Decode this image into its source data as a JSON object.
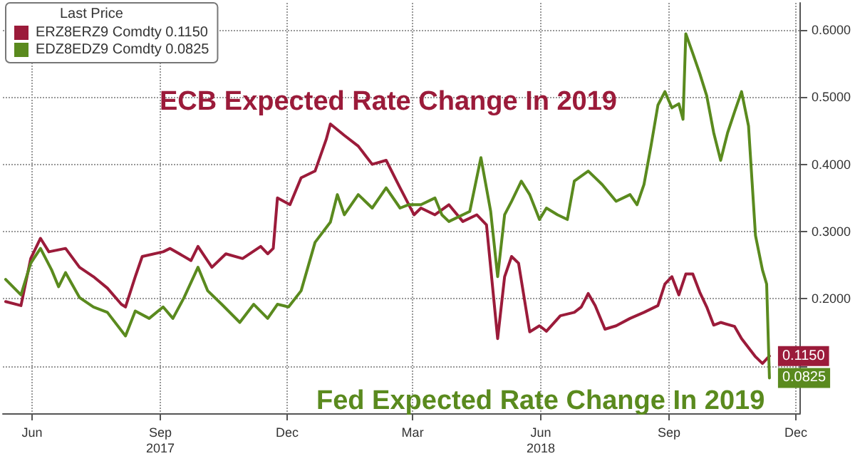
{
  "chart_data": {
    "type": "line",
    "legend_title": "Last Price",
    "legend": "top left",
    "grid": true,
    "marker": "none",
    "line_style": "solid",
    "annotations": [
      "ECB Expected Rate Change In 2019",
      "Fed Expected Rate Change In 2019"
    ],
    "xlim": [
      "2017-05-11",
      "2018-12-04"
    ],
    "xticks": [
      {
        "value": "2017-06-01",
        "label": "Jun"
      },
      {
        "value": "2017-09-01",
        "label": "Sep\n2017"
      },
      {
        "value": "2017-12-01",
        "label": "Dec"
      },
      {
        "value": "2018-03-01",
        "label": "Mar"
      },
      {
        "value": "2018-06-01",
        "label": "Jun\n2018"
      },
      {
        "value": "2018-09-01",
        "label": "Sep"
      },
      {
        "value": "2018-12-01",
        "label": "Dec"
      }
    ],
    "ylim": [
      0.03,
      0.64
    ],
    "yticks": [
      {
        "value": 0.1,
        "label": null
      },
      {
        "value": 0.2,
        "label": "0.2000"
      },
      {
        "value": 0.3,
        "label": "0.3000"
      },
      {
        "value": 0.4,
        "label": "0.4000"
      },
      {
        "value": 0.5,
        "label": "0.5000"
      },
      {
        "value": 0.6,
        "label": "0.6000"
      }
    ],
    "series": [
      {
        "name": "ERZ8ERZ9 Comdty 0.1150",
        "color": "#9b1b3a",
        "x": [
          "2017-05-13",
          "2017-05-24",
          "2017-05-31",
          "2017-06-07",
          "2017-06-13",
          "2017-06-25",
          "2017-07-05",
          "2017-07-15",
          "2017-07-25",
          "2017-08-04",
          "2017-08-07",
          "2017-08-14",
          "2017-08-19",
          "2017-09-03",
          "2017-09-08",
          "2017-09-23",
          "2017-09-28",
          "2017-10-08",
          "2017-10-18",
          "2017-10-30",
          "2017-11-12",
          "2017-11-17",
          "2017-11-21",
          "2017-11-24",
          "2017-12-03",
          "2017-12-11",
          "2017-12-21",
          "2017-12-29",
          "2018-01-01",
          "2018-01-11",
          "2018-01-21",
          "2018-01-31",
          "2018-02-10",
          "2018-02-20",
          "2018-03-02",
          "2018-03-07",
          "2018-03-17",
          "2018-03-27",
          "2018-04-06",
          "2018-04-16",
          "2018-04-23",
          "2018-05-01",
          "2018-05-06",
          "2018-05-11",
          "2018-05-16",
          "2018-05-24",
          "2018-05-31",
          "2018-06-05",
          "2018-06-15",
          "2018-06-25",
          "2018-06-30",
          "2018-07-05",
          "2018-07-10",
          "2018-07-17",
          "2018-07-25",
          "2018-08-04",
          "2018-08-14",
          "2018-08-24",
          "2018-08-29",
          "2018-09-03",
          "2018-09-08",
          "2018-09-13",
          "2018-09-18",
          "2018-09-23",
          "2018-09-28",
          "2018-10-03",
          "2018-10-08",
          "2018-10-18",
          "2018-10-23",
          "2018-11-02",
          "2018-11-07",
          "2018-11-12"
        ],
        "values": [
          0.196,
          0.19,
          0.26,
          0.29,
          0.27,
          0.275,
          0.247,
          0.233,
          0.216,
          0.192,
          0.188,
          0.233,
          0.263,
          0.27,
          0.275,
          0.257,
          0.278,
          0.247,
          0.267,
          0.26,
          0.278,
          0.267,
          0.275,
          0.35,
          0.34,
          0.38,
          0.39,
          0.437,
          0.46,
          0.443,
          0.427,
          0.4,
          0.406,
          0.365,
          0.325,
          0.335,
          0.325,
          0.34,
          0.315,
          0.325,
          0.31,
          0.141,
          0.233,
          0.263,
          0.253,
          0.151,
          0.16,
          0.152,
          0.175,
          0.18,
          0.188,
          0.208,
          0.19,
          0.155,
          0.16,
          0.171,
          0.18,
          0.19,
          0.222,
          0.233,
          0.206,
          0.237,
          0.237,
          0.21,
          0.188,
          0.161,
          0.165,
          0.159,
          0.141,
          0.114,
          0.104,
          0.115
        ],
        "value_labels": [
          null,
          null,
          null,
          null,
          null,
          null,
          null,
          null,
          null,
          null,
          null,
          null,
          null,
          null,
          null,
          null,
          null,
          null,
          null,
          null,
          null,
          null,
          null,
          null,
          null,
          null,
          null,
          null,
          null,
          null,
          null,
          null,
          null,
          null,
          null,
          null,
          null,
          null,
          null,
          null,
          null,
          null,
          null,
          null,
          null,
          null,
          null,
          null,
          null,
          null,
          null,
          null,
          null,
          null,
          null,
          null,
          null,
          null,
          null,
          null,
          null,
          null,
          null,
          null,
          null,
          null,
          null,
          null,
          null,
          null,
          null,
          "0.1150"
        ]
      },
      {
        "name": "EDZ8EDZ9 Comdty 0.0825",
        "color": "#5a8a1e",
        "x": [
          "2017-05-13",
          "2017-05-24",
          "2017-05-31",
          "2017-06-07",
          "2017-06-15",
          "2017-06-20",
          "2017-06-25",
          "2017-07-05",
          "2017-07-15",
          "2017-07-25",
          "2017-08-07",
          "2017-08-14",
          "2017-08-24",
          "2017-09-03",
          "2017-09-10",
          "2017-09-18",
          "2017-09-28",
          "2017-10-05",
          "2017-10-15",
          "2017-10-28",
          "2017-11-07",
          "2017-11-17",
          "2017-11-24",
          "2017-12-02",
          "2017-12-11",
          "2017-12-21",
          "2018-01-01",
          "2018-01-06",
          "2018-01-11",
          "2018-01-21",
          "2018-01-31",
          "2018-02-10",
          "2018-02-20",
          "2018-02-26",
          "2018-03-07",
          "2018-03-17",
          "2018-03-22",
          "2018-03-27",
          "2018-04-11",
          "2018-04-19",
          "2018-04-26",
          "2018-05-01",
          "2018-05-06",
          "2018-05-11",
          "2018-05-18",
          "2018-05-24",
          "2018-05-31",
          "2018-06-05",
          "2018-06-13",
          "2018-06-20",
          "2018-06-25",
          "2018-07-05",
          "2018-07-15",
          "2018-07-25",
          "2018-08-04",
          "2018-08-09",
          "2018-08-14",
          "2018-08-19",
          "2018-08-24",
          "2018-08-29",
          "2018-09-03",
          "2018-09-08",
          "2018-09-11",
          "2018-09-13",
          "2018-09-18",
          "2018-09-23",
          "2018-09-28",
          "2018-10-03",
          "2018-10-08",
          "2018-10-13",
          "2018-10-18",
          "2018-10-23",
          "2018-10-28",
          "2018-11-02",
          "2018-11-07",
          "2018-11-10",
          "2018-11-12"
        ],
        "values": [
          0.229,
          0.206,
          0.253,
          0.275,
          0.243,
          0.218,
          0.239,
          0.202,
          0.188,
          0.18,
          0.145,
          0.182,
          0.171,
          0.188,
          0.171,
          0.202,
          0.247,
          0.212,
          0.192,
          0.165,
          0.192,
          0.171,
          0.192,
          0.188,
          0.212,
          0.284,
          0.314,
          0.355,
          0.325,
          0.355,
          0.335,
          0.365,
          0.335,
          0.34,
          0.34,
          0.35,
          0.325,
          0.315,
          0.33,
          0.41,
          0.33,
          0.233,
          0.325,
          0.345,
          0.375,
          0.355,
          0.318,
          0.335,
          0.325,
          0.318,
          0.375,
          0.39,
          0.37,
          0.345,
          0.355,
          0.34,
          0.37,
          0.427,
          0.488,
          0.508,
          0.484,
          0.49,
          0.467,
          0.594,
          0.565,
          0.535,
          0.502,
          0.447,
          0.406,
          0.447,
          0.478,
          0.508,
          0.457,
          0.294,
          0.243,
          0.222,
          0.0825
        ],
        "value_labels": [
          null,
          null,
          null,
          null,
          null,
          null,
          null,
          null,
          null,
          null,
          null,
          null,
          null,
          null,
          null,
          null,
          null,
          null,
          null,
          null,
          null,
          null,
          null,
          null,
          null,
          null,
          null,
          null,
          null,
          null,
          null,
          null,
          null,
          null,
          null,
          null,
          null,
          null,
          null,
          null,
          null,
          null,
          null,
          null,
          null,
          null,
          null,
          null,
          null,
          null,
          null,
          null,
          null,
          null,
          null,
          null,
          null,
          null,
          null,
          null,
          null,
          null,
          null,
          null,
          null,
          null,
          null,
          null,
          null,
          null,
          null,
          null,
          null,
          null,
          null,
          null,
          "0.0825"
        ]
      }
    ]
  }
}
